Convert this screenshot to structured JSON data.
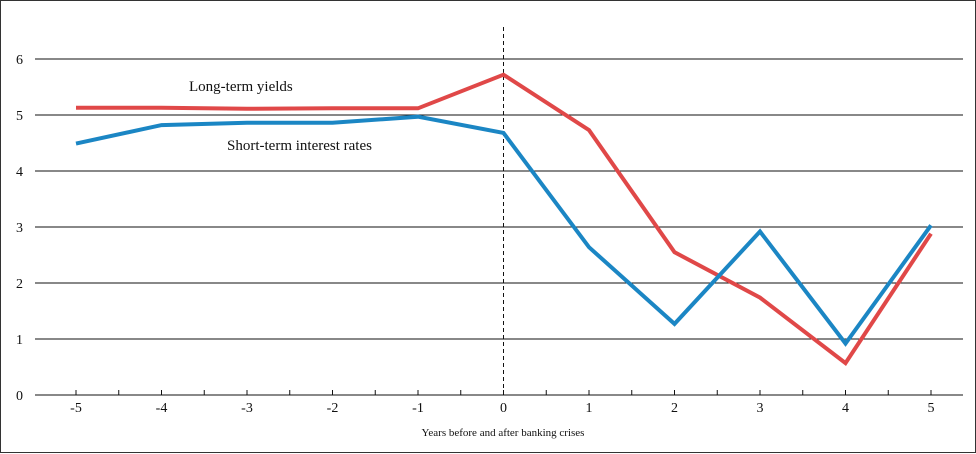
{
  "chart_data": {
    "type": "line",
    "title": "",
    "xlabel": "Years before and after banking crises",
    "ylabel": "",
    "categories": [
      "-5",
      "-4",
      "-3",
      "-2",
      "-1",
      "0",
      "1",
      "2",
      "3",
      "4",
      "5"
    ],
    "x": [
      -5,
      -4,
      -3,
      -2,
      -1,
      0,
      1,
      2,
      3,
      4,
      5
    ],
    "ylim": [
      0,
      6
    ],
    "yticks": [
      "0",
      "1",
      "2",
      "3",
      "4",
      "5",
      "6"
    ],
    "grid": "horizontal",
    "reference_line": {
      "x": 0,
      "style": "dashed"
    },
    "series": [
      {
        "name": "Long-term yields",
        "color": "#e04848",
        "values": [
          5.13,
          5.13,
          5.11,
          5.12,
          5.12,
          5.72,
          4.73,
          2.55,
          1.74,
          0.57,
          2.88
        ]
      },
      {
        "name": "Short-term interest rates",
        "color": "#1b86c4",
        "values": [
          4.49,
          4.82,
          4.86,
          4.86,
          4.97,
          4.68,
          2.64,
          1.27,
          2.92,
          0.92,
          3.03
        ]
      }
    ]
  }
}
